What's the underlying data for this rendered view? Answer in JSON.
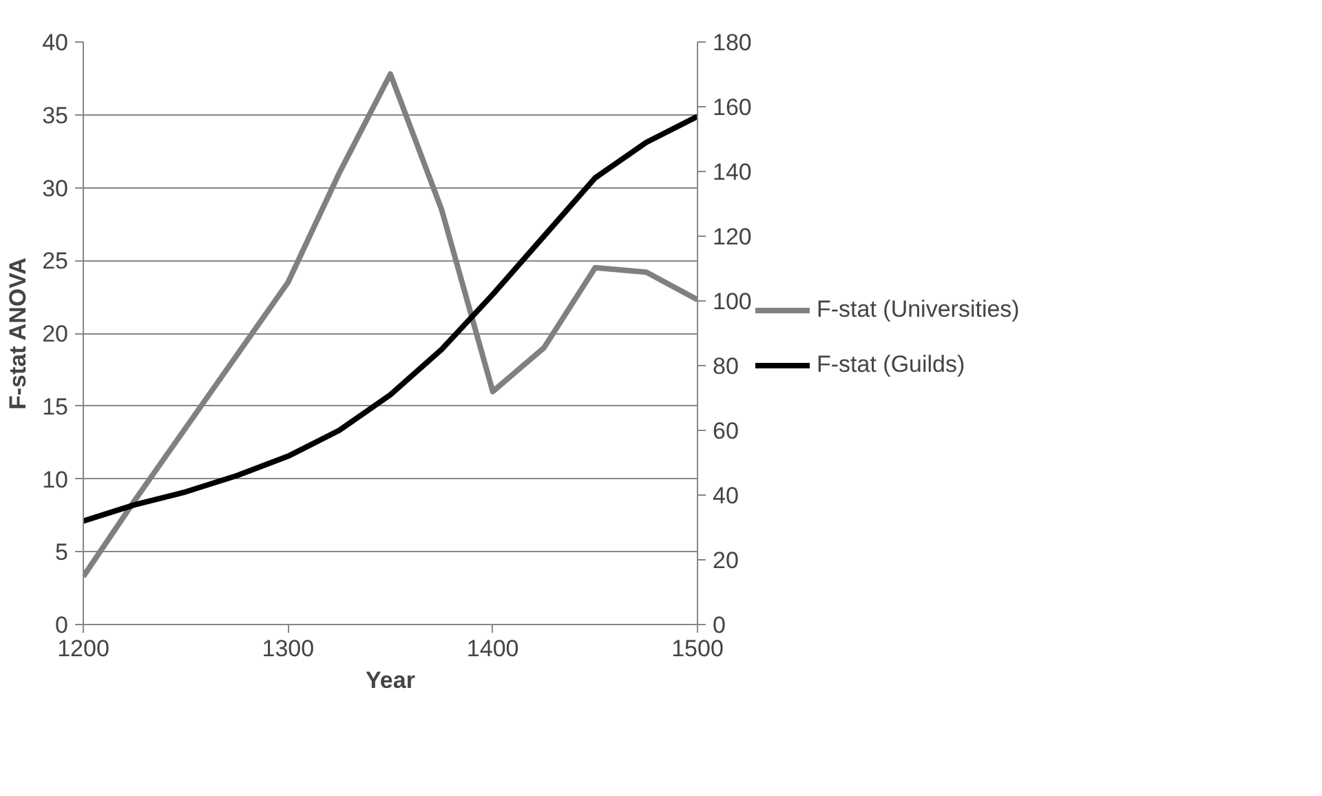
{
  "chart_data": {
    "type": "line",
    "xlabel": "Year",
    "ylabel": "F-stat ANOVA",
    "x": [
      1200,
      1225,
      1250,
      1275,
      1300,
      1325,
      1350,
      1375,
      1400,
      1425,
      1450,
      1475,
      1500
    ],
    "series": [
      {
        "name": "F-stat (Universities)",
        "color": "#808080",
        "values": [
          3.3,
          8.5,
          13.5,
          18.5,
          23.5,
          31,
          37.8,
          28.5,
          16,
          19,
          24.5,
          24.2,
          22.3
        ]
      },
      {
        "name": "F-stat (Guilds)",
        "color": "#000000",
        "axis": "y2",
        "values": [
          32,
          37,
          41,
          46,
          52,
          60,
          71,
          85,
          102,
          120,
          138,
          149,
          157
        ]
      }
    ],
    "xlim": [
      1200,
      1500
    ],
    "xticks": [
      1200,
      1300,
      1400,
      1500
    ],
    "ylim": [
      0,
      40
    ],
    "yticks": [
      0,
      5,
      10,
      15,
      20,
      25,
      30,
      35,
      40
    ],
    "y2lim": [
      0,
      180
    ],
    "y2ticks": [
      0,
      20,
      40,
      60,
      80,
      100,
      120,
      140,
      160,
      180
    ],
    "grid": "y",
    "legend": "right",
    "marker": "none",
    "line_style": "solid"
  }
}
